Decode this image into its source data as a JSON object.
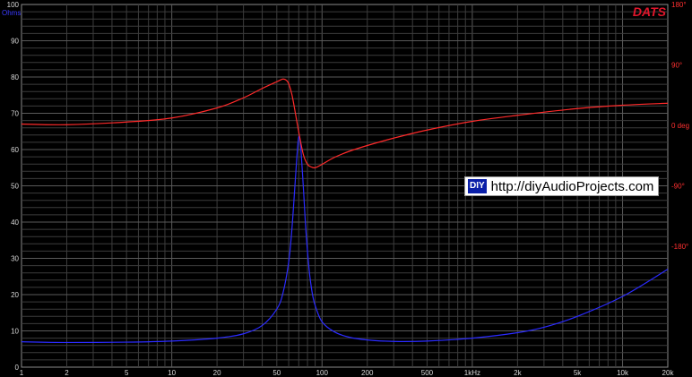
{
  "brand": {
    "name": "DATS",
    "color": "#e0162b"
  },
  "watermark": {
    "logo_text": "DIY",
    "url_text": "http://diyAudioProjects.com"
  },
  "colors": {
    "background": "#000000",
    "grid": "#3c3c3c",
    "impedance": "#2b2bff",
    "phase": "#ff2a2a"
  },
  "chart_data": {
    "type": "line",
    "title": "",
    "x_scale": "log",
    "xlim": [
      1,
      20000
    ],
    "x_ticks": [
      {
        "value": 1,
        "label": "1"
      },
      {
        "value": 2,
        "label": "2"
      },
      {
        "value": 5,
        "label": "5"
      },
      {
        "value": 10,
        "label": "10"
      },
      {
        "value": 20,
        "label": "20"
      },
      {
        "value": 50,
        "label": "50"
      },
      {
        "value": 100,
        "label": "100"
      },
      {
        "value": 200,
        "label": "200"
      },
      {
        "value": 500,
        "label": "500"
      },
      {
        "value": 1000,
        "label": "1kHz"
      },
      {
        "value": 2000,
        "label": "2k"
      },
      {
        "value": 5000,
        "label": "5k"
      },
      {
        "value": 10000,
        "label": "10k"
      },
      {
        "value": 20000,
        "label": "20k"
      }
    ],
    "y_left": {
      "label": "Ohms",
      "ylim": [
        0,
        100
      ],
      "ticks": [
        "0",
        "10",
        "20",
        "30",
        "40",
        "50",
        "60",
        "70",
        "80",
        "90",
        "100"
      ]
    },
    "y_right": {
      "label": "0 deg",
      "ylim": [
        -360,
        180
      ],
      "ticks": [
        {
          "value": 180,
          "label": "180°"
        },
        {
          "value": 90,
          "label": "90°"
        },
        {
          "value": 0,
          "label": "0 deg"
        },
        {
          "value": -90,
          "label": "-90°"
        },
        {
          "value": -180,
          "label": "-180°"
        }
      ]
    },
    "grid": true,
    "series": [
      {
        "axis": "left",
        "color": "#2b2bff",
        "x": [
          1,
          2,
          5,
          10,
          20,
          30,
          40,
          50,
          55,
          60,
          63,
          66,
          68,
          70,
          72,
          75,
          78,
          82,
          86,
          90,
          100,
          120,
          150,
          200,
          300,
          500,
          1000,
          2000,
          3000,
          5000,
          10000,
          20000
        ],
        "y": [
          7,
          6.8,
          6.9,
          7.2,
          8,
          9.2,
          11.5,
          16,
          20.5,
          29,
          38,
          50,
          58,
          63.5,
          61,
          50,
          38,
          27,
          20.5,
          17,
          12.5,
          9.8,
          8.3,
          7.5,
          7.1,
          7.2,
          8,
          9.5,
          11,
          14,
          19.5,
          27
        ]
      },
      {
        "axis": "right",
        "color": "#ff2a2a",
        "x": [
          1,
          2,
          5,
          10,
          20,
          30,
          40,
          50,
          55,
          58,
          60,
          63,
          66,
          70,
          75,
          80,
          85,
          90,
          100,
          120,
          150,
          200,
          300,
          500,
          1000,
          2000,
          5000,
          10000,
          20000
        ],
        "y": [
          2,
          1,
          5,
          11,
          26,
          41,
          55,
          65,
          69,
          67,
          62,
          46,
          22,
          -10,
          -43,
          -58,
          -62,
          -63,
          -58,
          -48,
          -39,
          -30,
          -19,
          -7,
          6,
          15,
          25,
          30,
          33
        ]
      }
    ]
  }
}
